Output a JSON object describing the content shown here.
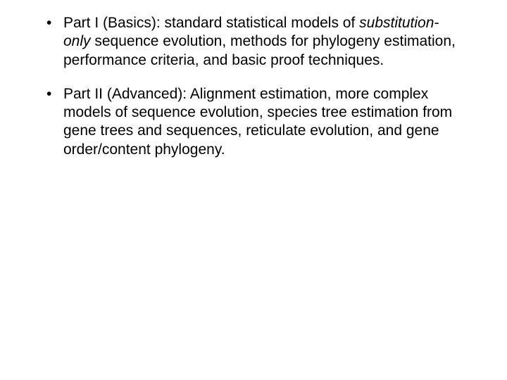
{
  "bullets": [
    {
      "prefix": "Part I (Basics): standard statistical models of ",
      "em": "substitution-only",
      "suffix": " sequence evolution, methods for phylogeny estimation, performance criteria, and basic proof techniques."
    },
    {
      "prefix": "Part II (Advanced): Alignment estimation, more complex models of sequence evolution, species tree estimation from gene trees and sequences, reticulate evolution, and gene order/content phylogeny.",
      "em": "",
      "suffix": ""
    }
  ]
}
